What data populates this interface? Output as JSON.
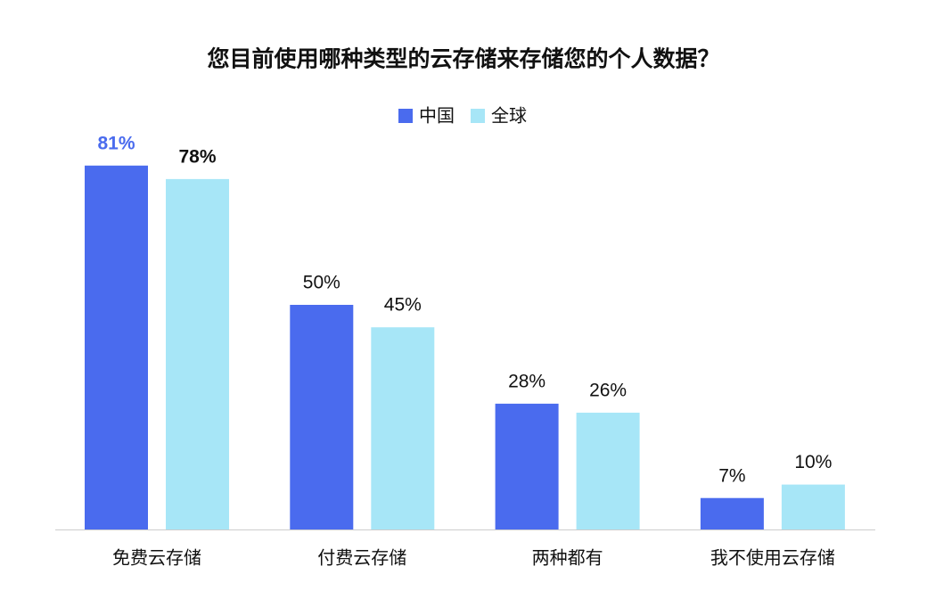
{
  "chart_data": {
    "type": "bar",
    "title": "您目前使用哪种类型的云存储来存储您的个人数据？",
    "categories": [
      "免费云存储",
      "付费云存储",
      "两种都有",
      "我不使用云存储"
    ],
    "series": [
      {
        "name": "中国",
        "color": "#4a6bee",
        "values": [
          81,
          50,
          28,
          7
        ],
        "value_labels": [
          "81%",
          "50%",
          "28%",
          "7%"
        ]
      },
      {
        "name": "全球",
        "color": "#a7e6f7",
        "values": [
          78,
          45,
          26,
          10
        ],
        "value_labels": [
          "78%",
          "45%",
          "26%",
          "10%"
        ]
      }
    ],
    "legend": "top"
  }
}
